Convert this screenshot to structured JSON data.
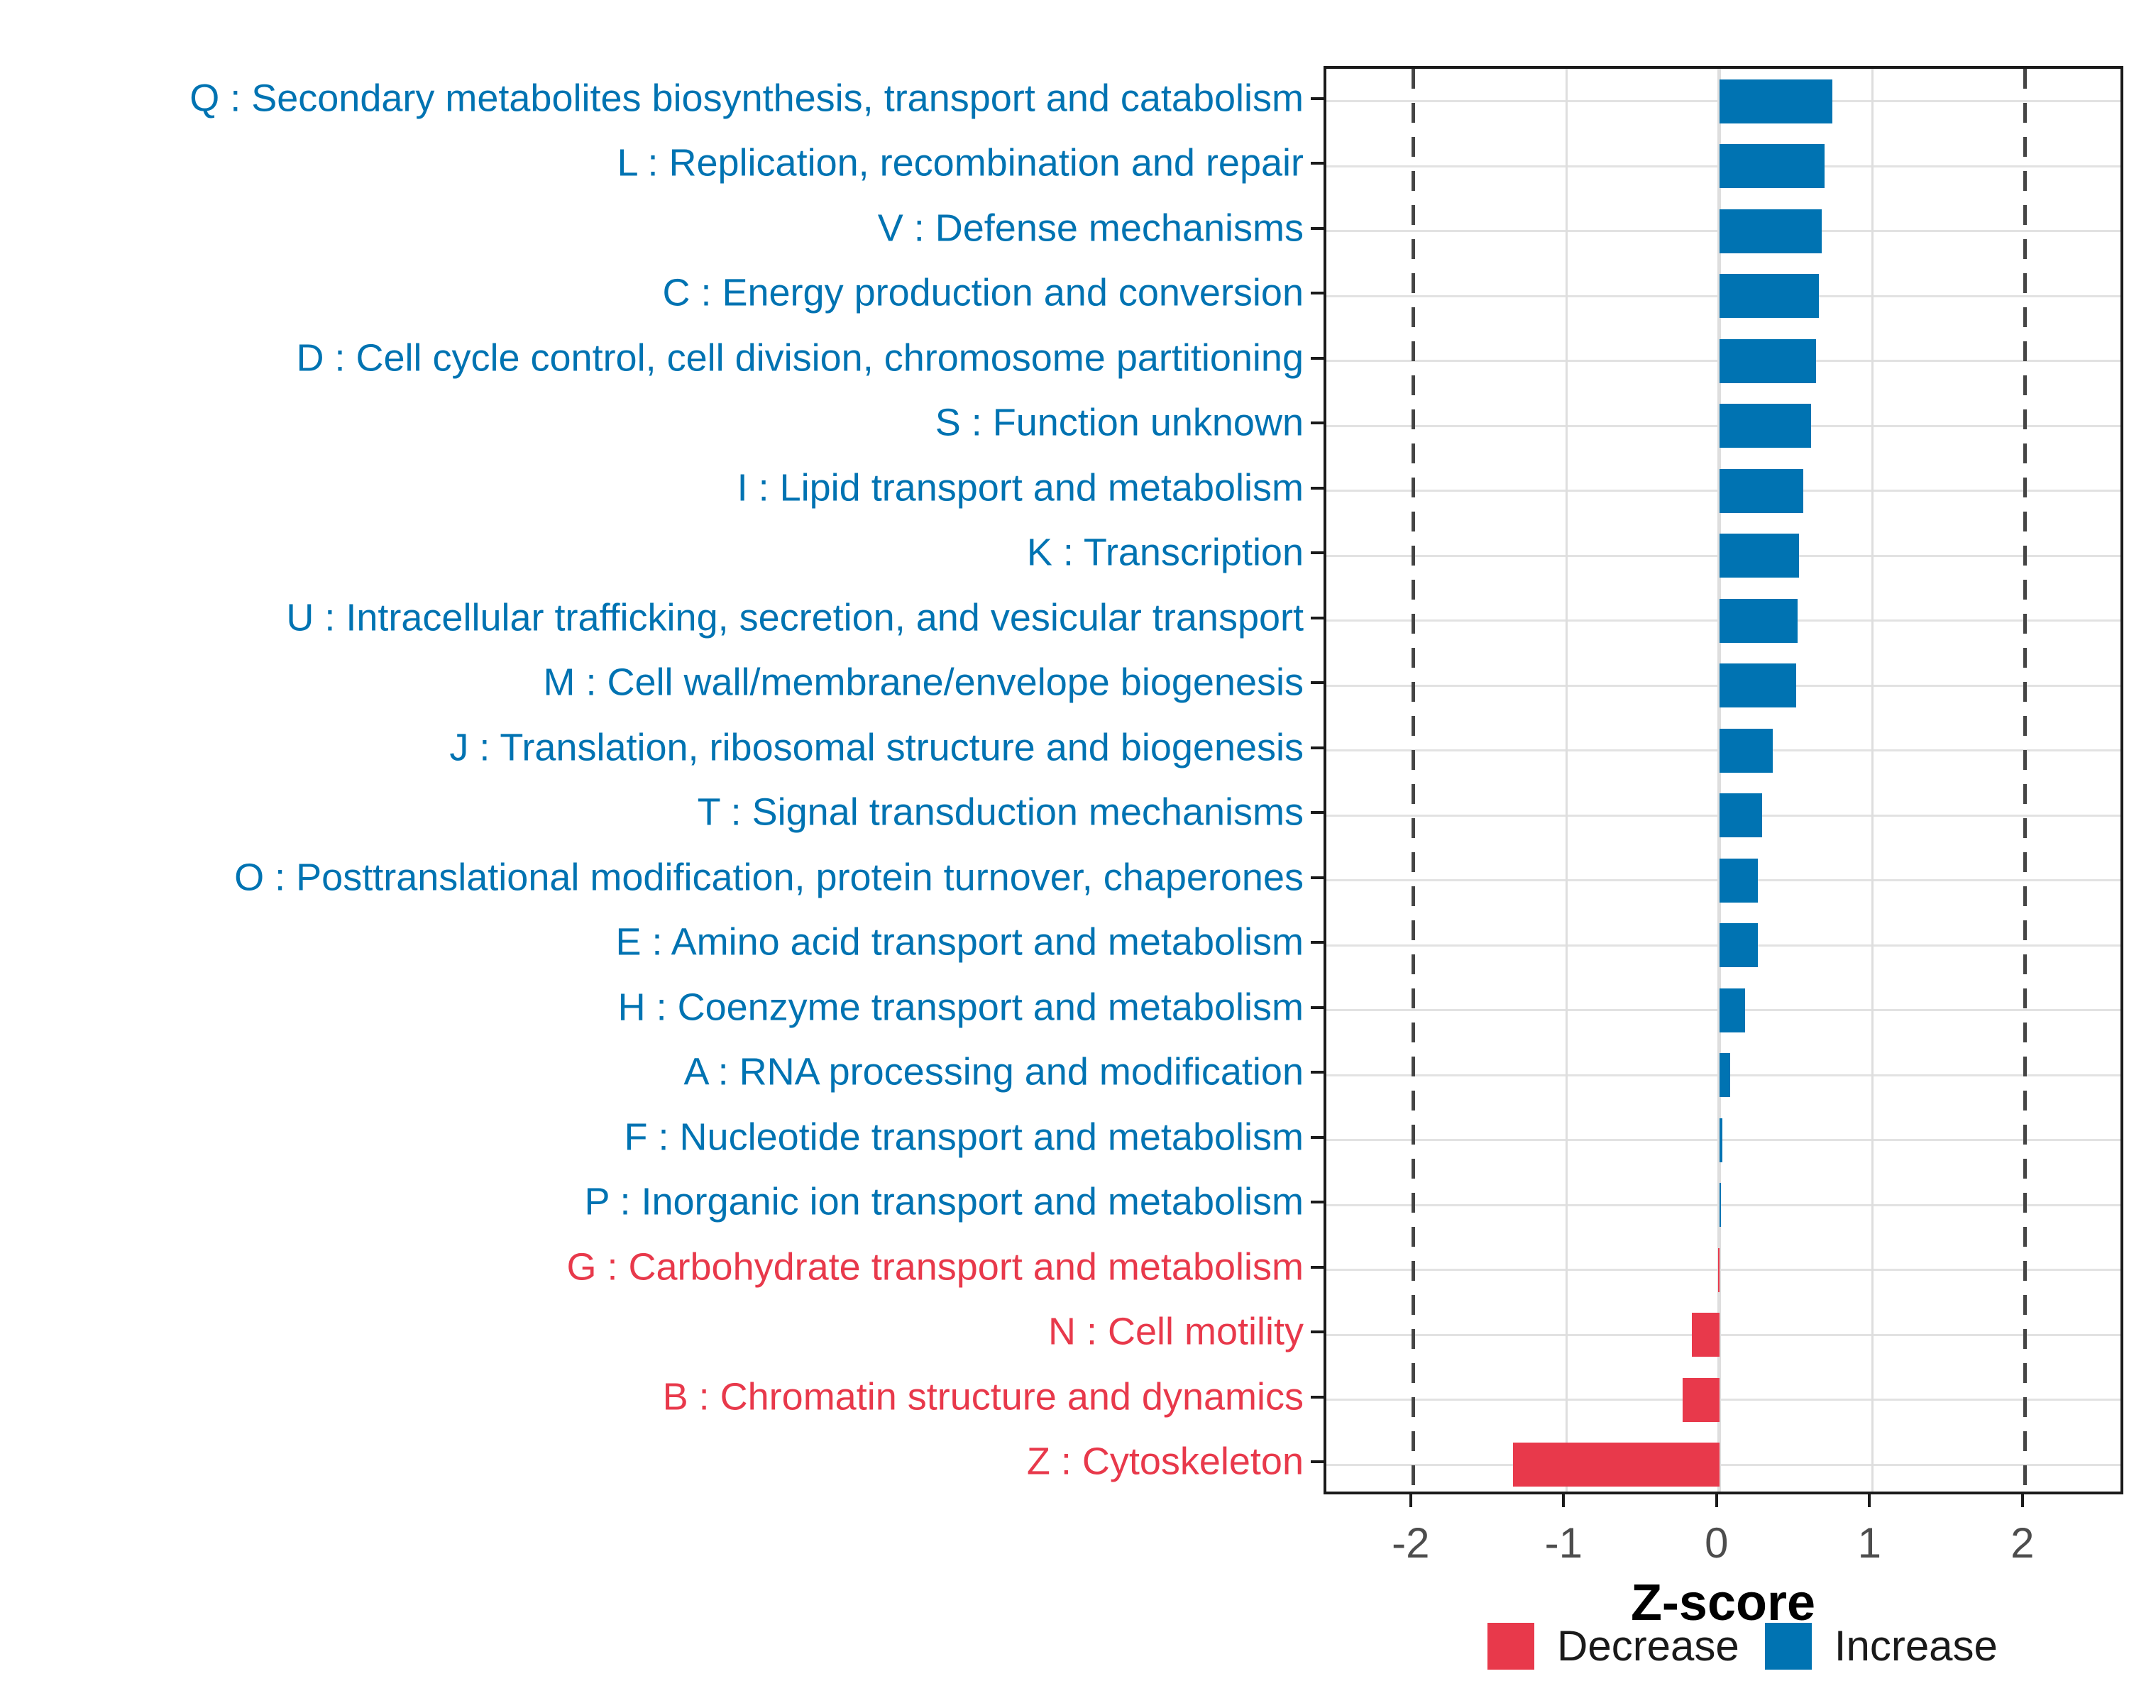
{
  "chart_data": {
    "type": "bar",
    "orientation": "horizontal",
    "title": "",
    "xlabel": "Z-score",
    "ylabel": "",
    "xlim": [
      -2.57,
      2.66
    ],
    "x_ticks": [
      -2,
      -1,
      0,
      1,
      2
    ],
    "x_tick_labels": [
      "-2",
      "-1",
      "0",
      "1",
      "2"
    ],
    "grid": {
      "solid_at": [
        -1,
        0,
        1
      ],
      "dashed_at": [
        -2,
        2
      ],
      "horizontal": "at each category center"
    },
    "legend": {
      "position": "bottom-right",
      "items": [
        {
          "label": "Decrease",
          "color": "#e8394b"
        },
        {
          "label": "Increase",
          "color": "#0073b2"
        }
      ]
    },
    "categories": [
      {
        "label": "Q : Secondary metabolites biosynthesis, transport and catabolism",
        "value": 0.74,
        "group": "Increase"
      },
      {
        "label": "L : Replication, recombination and repair",
        "value": 0.69,
        "group": "Increase"
      },
      {
        "label": "V : Defense mechanisms",
        "value": 0.67,
        "group": "Increase"
      },
      {
        "label": "C : Energy production and conversion",
        "value": 0.65,
        "group": "Increase"
      },
      {
        "label": "D : Cell cycle control, cell division, chromosome partitioning",
        "value": 0.63,
        "group": "Increase"
      },
      {
        "label": "S : Function unknown",
        "value": 0.6,
        "group": "Increase"
      },
      {
        "label": "I : Lipid transport and metabolism",
        "value": 0.55,
        "group": "Increase"
      },
      {
        "label": "K : Transcription",
        "value": 0.52,
        "group": "Increase"
      },
      {
        "label": "U : Intracellular trafficking, secretion, and vesicular transport",
        "value": 0.51,
        "group": "Increase"
      },
      {
        "label": "M : Cell wall/membrane/envelope biogenesis",
        "value": 0.5,
        "group": "Increase"
      },
      {
        "label": "J : Translation, ribosomal structure and biogenesis",
        "value": 0.35,
        "group": "Increase"
      },
      {
        "label": "T : Signal transduction mechanisms",
        "value": 0.28,
        "group": "Increase"
      },
      {
        "label": "O : Posttranslational modification, protein turnover, chaperones",
        "value": 0.25,
        "group": "Increase"
      },
      {
        "label": "E : Amino acid transport and metabolism",
        "value": 0.25,
        "group": "Increase"
      },
      {
        "label": "H : Coenzyme transport and metabolism",
        "value": 0.17,
        "group": "Increase"
      },
      {
        "label": "A : RNA processing and modification",
        "value": 0.07,
        "group": "Increase"
      },
      {
        "label": "F : Nucleotide transport and metabolism",
        "value": 0.02,
        "group": "Increase"
      },
      {
        "label": "P : Inorganic ion transport and metabolism",
        "value": 0.01,
        "group": "Increase"
      },
      {
        "label": "G : Carbohydrate transport and metabolism",
        "value": -0.01,
        "group": "Decrease"
      },
      {
        "label": "N : Cell motility",
        "value": -0.18,
        "group": "Decrease"
      },
      {
        "label": "B : Chromatin structure and dynamics",
        "value": -0.24,
        "group": "Decrease"
      },
      {
        "label": "Z : Cytoskeleton",
        "value": -1.35,
        "group": "Decrease"
      }
    ]
  },
  "colors": {
    "increase": "#0073b2",
    "decrease": "#e8394b",
    "axis_text": "#4d4d4d",
    "grid": "#e2e2e2",
    "dashed_line": "#454545",
    "panel_border": "#1a1a1a"
  }
}
